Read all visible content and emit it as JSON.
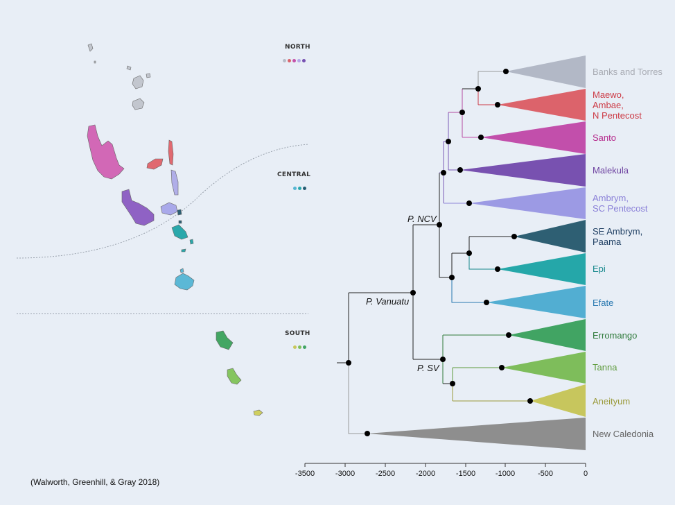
{
  "citation": "(Walworth, Greenhill, & Gray 2018)",
  "regions": [
    {
      "name": "NORTH",
      "colors": [
        "#b7bcc8",
        "#d9636b",
        "#c451a9",
        "#b4a6e6",
        "#7650b1"
      ]
    },
    {
      "name": "CENTRAL",
      "colors": [
        "#56b5d2",
        "#2aa8ac",
        "#255c72"
      ]
    },
    {
      "name": "SOUTH",
      "colors": [
        "#c8c75c",
        "#7fbf5a",
        "#41a464"
      ]
    }
  ],
  "node_labels": {
    "pncv": "P. NCV",
    "pvanuatu": "P. Vanuatu",
    "psv": "P. SV"
  },
  "clades": [
    {
      "label": "Banks and Torres",
      "color": "#a8abb3",
      "fill": "#b2b8c6"
    },
    {
      "label": "Maewo,\nAmbae,\nN Pentecost",
      "color": "#cc3a45",
      "fill": "#dc636b"
    },
    {
      "label": "Santo",
      "color": "#b52a8c",
      "fill": "#c24fab"
    },
    {
      "label": "Malekula",
      "color": "#6b3f9f",
      "fill": "#7851b0"
    },
    {
      "label": "Ambrym,\nSC Pentecost",
      "color": "#8a80d8",
      "fill": "#9c9ae4"
    },
    {
      "label": "SE Ambrym,\nPaama",
      "color": "#1f3f63",
      "fill": "#2e5f73"
    },
    {
      "label": "Epi",
      "color": "#16888c",
      "fill": "#25a7a9"
    },
    {
      "label": "Efate",
      "color": "#2878b0",
      "fill": "#52aed2"
    },
    {
      "label": "Erromango",
      "color": "#2f7a3b",
      "fill": "#41a463"
    },
    {
      "label": "Tanna",
      "color": "#5d9a3b",
      "fill": "#7ebd5b"
    },
    {
      "label": "Aneityum",
      "color": "#9a9a3a",
      "fill": "#c7c65d"
    },
    {
      "label": "New Caledonia",
      "color": "#666666",
      "fill": "#8e8e8e"
    }
  ],
  "axis": {
    "ticks": [
      "-3500",
      "-3000",
      "-2500",
      "-2000",
      "-1500",
      "-1000",
      "-500",
      "0"
    ]
  }
}
